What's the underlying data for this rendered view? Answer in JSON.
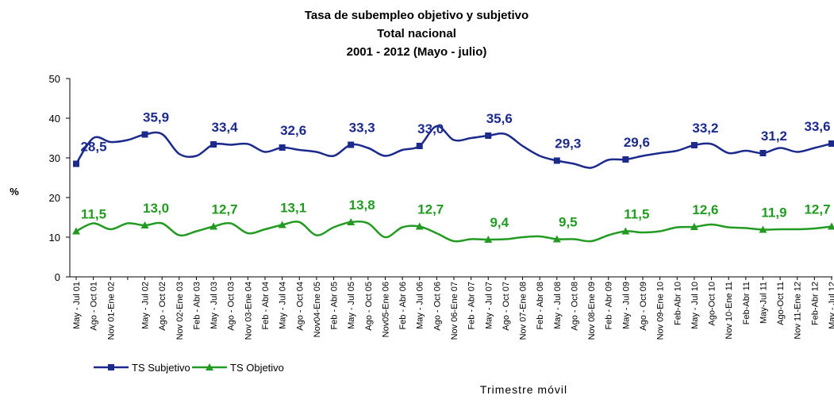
{
  "chart_data": {
    "type": "line",
    "title": "Tasa  de subempleo objetivo y subjetivo",
    "subtitle": [
      "Total nacional",
      "2001 - 2012 (Mayo - julio)"
    ],
    "y_label": "%",
    "x_label": "Trimestre móvil",
    "categories": [
      "May - Jul 01",
      "Ago - Oct 01",
      "Nov 01-Ene 02",
      null,
      "May - Jul 02",
      "Ago - Oct 02",
      "Nov 02-Ene 03",
      "Feb - Abr 03",
      "May - Jul 03",
      "Ago - Oct 03",
      "Nov 03-Ene 04",
      "Feb - Abr 04",
      "May - Jul 04",
      "Ago - Oct 04",
      "Nov04-Ene 05",
      "Feb - Abr 05",
      "May - Jul 05",
      "Ago - Oct 05",
      "Nov05-Ene 06",
      "Feb - Abr 06",
      "May - Jul 06",
      "Ago - Oct 06",
      "Nov 06-Ene 07",
      "Feb - Abr 07",
      "May - Jul 07",
      "Ago - Oct 07",
      "Nov 07-Ene 08",
      "Feb - Abr 08",
      "May - Jul 08",
      "Ago - Oct 08",
      "Nov 08-Ene 09",
      "Feb - Abr 09",
      "May - Jul 09",
      "Ago - Oct 09",
      "Nov 09-Ene 10",
      "Feb-Abr 10",
      "May - Jul 10",
      "Ago-Oct 10",
      "Nov 10-Ene 11",
      "Feb-Abr 11",
      "May-Jul 11",
      "Ago-Oct 11",
      "Nov 11-Ene 12",
      "Feb-Abr 12",
      "May - Jul 12"
    ],
    "series": [
      {
        "name": "TS Subjetivo",
        "color": "#1c2a8c",
        "marker": "square",
        "values": [
          28.5,
          35,
          34,
          34.5,
          35.9,
          36,
          31,
          30.5,
          33.4,
          33.3,
          33.5,
          31.5,
          32.6,
          32,
          31.5,
          30.5,
          33.3,
          32.5,
          30.5,
          32,
          33.0,
          38,
          34.5,
          35,
          35.6,
          36,
          33,
          30.5,
          29.3,
          28.5,
          27.5,
          29.5,
          29.6,
          30.5,
          31.2,
          31.8,
          33.2,
          33.5,
          31.2,
          31.8,
          31.2,
          32.5,
          31.5,
          32.5,
          33.6
        ],
        "value_labels": [
          "28,5",
          null,
          null,
          null,
          "35,9",
          null,
          null,
          null,
          "33,4",
          null,
          null,
          null,
          "32,6",
          null,
          null,
          null,
          "33,3",
          null,
          null,
          null,
          "33,0",
          null,
          null,
          null,
          "35,6",
          null,
          null,
          null,
          "29,3",
          null,
          null,
          null,
          "29,6",
          null,
          null,
          null,
          "33,2",
          null,
          null,
          null,
          "31,2",
          null,
          null,
          null,
          "33,6"
        ]
      },
      {
        "name": "TS Objetivo",
        "color": "#239b23",
        "marker": "triangle",
        "values": [
          11.5,
          13.5,
          12,
          13.5,
          13.0,
          13.5,
          10.5,
          11.5,
          12.7,
          13.5,
          11,
          12,
          13.1,
          13.8,
          10.5,
          12.5,
          13.8,
          13.5,
          10,
          12.5,
          12.7,
          11,
          9,
          9.5,
          9.4,
          9.5,
          10,
          10.2,
          9.5,
          9.5,
          9,
          10.5,
          11.5,
          11.2,
          11.5,
          12.5,
          12.6,
          13.2,
          12.5,
          12.3,
          11.9,
          12,
          12,
          12.2,
          12.7
        ],
        "value_labels": [
          "11,5",
          null,
          null,
          null,
          "13,0",
          null,
          null,
          null,
          "12,7",
          null,
          null,
          null,
          "13,1",
          null,
          null,
          null,
          "13,8",
          null,
          null,
          null,
          "12,7",
          null,
          null,
          null,
          "9,4",
          null,
          null,
          null,
          "9,5",
          null,
          null,
          null,
          "11,5",
          null,
          null,
          null,
          "12,6",
          null,
          null,
          null,
          "11,9",
          null,
          null,
          null,
          "12,7"
        ]
      }
    ],
    "ylim": [
      0,
      50
    ],
    "yticks": [
      0,
      10,
      20,
      30,
      40,
      50
    ],
    "grid": false
  }
}
